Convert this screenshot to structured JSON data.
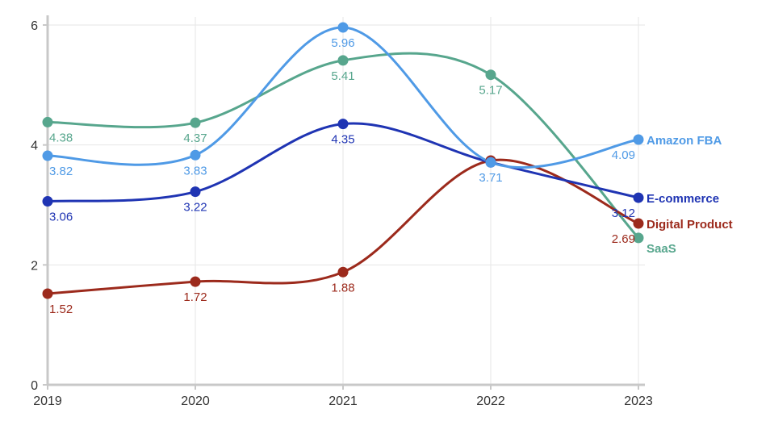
{
  "chart_data": {
    "type": "line",
    "title": "",
    "xlabel": "",
    "ylabel": "",
    "categories": [
      "2019",
      "2020",
      "2021",
      "2022",
      "2023"
    ],
    "ylim": [
      0,
      6
    ],
    "yticks": [
      0,
      2,
      4,
      6
    ],
    "grid": true,
    "legend": "end-of-line labels at right",
    "series": [
      {
        "name": "Amazon FBA",
        "color": "#4f9ae6",
        "values": [
          3.82,
          3.83,
          5.96,
          3.71,
          4.09
        ]
      },
      {
        "name": "E-commerce",
        "color": "#1f34b3",
        "values": [
          3.06,
          3.22,
          4.35,
          3.71,
          3.12
        ]
      },
      {
        "name": "Digital Product",
        "color": "#9c2a1c",
        "values": [
          1.52,
          1.72,
          1.88,
          3.74,
          2.69
        ]
      },
      {
        "name": "SaaS",
        "color": "#57a68d",
        "values": [
          4.38,
          4.37,
          5.41,
          5.17,
          2.45
        ]
      }
    ],
    "data_labels": [
      {
        "series": 0,
        "point": 0,
        "text": "3.82"
      },
      {
        "series": 0,
        "point": 1,
        "text": "3.83"
      },
      {
        "series": 0,
        "point": 2,
        "text": "5.96"
      },
      {
        "series": 0,
        "point": 3,
        "text": "3.71"
      },
      {
        "series": 0,
        "point": 4,
        "text": "4.09"
      },
      {
        "series": 1,
        "point": 0,
        "text": "3.06"
      },
      {
        "series": 1,
        "point": 1,
        "text": "3.22"
      },
      {
        "series": 1,
        "point": 2,
        "text": "4.35"
      },
      {
        "series": 1,
        "point": 4,
        "text": "3.12"
      },
      {
        "series": 2,
        "point": 0,
        "text": "1.52"
      },
      {
        "series": 2,
        "point": 1,
        "text": "1.72"
      },
      {
        "series": 2,
        "point": 2,
        "text": "1.88"
      },
      {
        "series": 2,
        "point": 4,
        "text": "2.69"
      },
      {
        "series": 3,
        "point": 0,
        "text": "4.38"
      },
      {
        "series": 3,
        "point": 1,
        "text": "4.37"
      },
      {
        "series": 3,
        "point": 2,
        "text": "5.41"
      },
      {
        "series": 3,
        "point": 3,
        "text": "5.17"
      }
    ]
  }
}
